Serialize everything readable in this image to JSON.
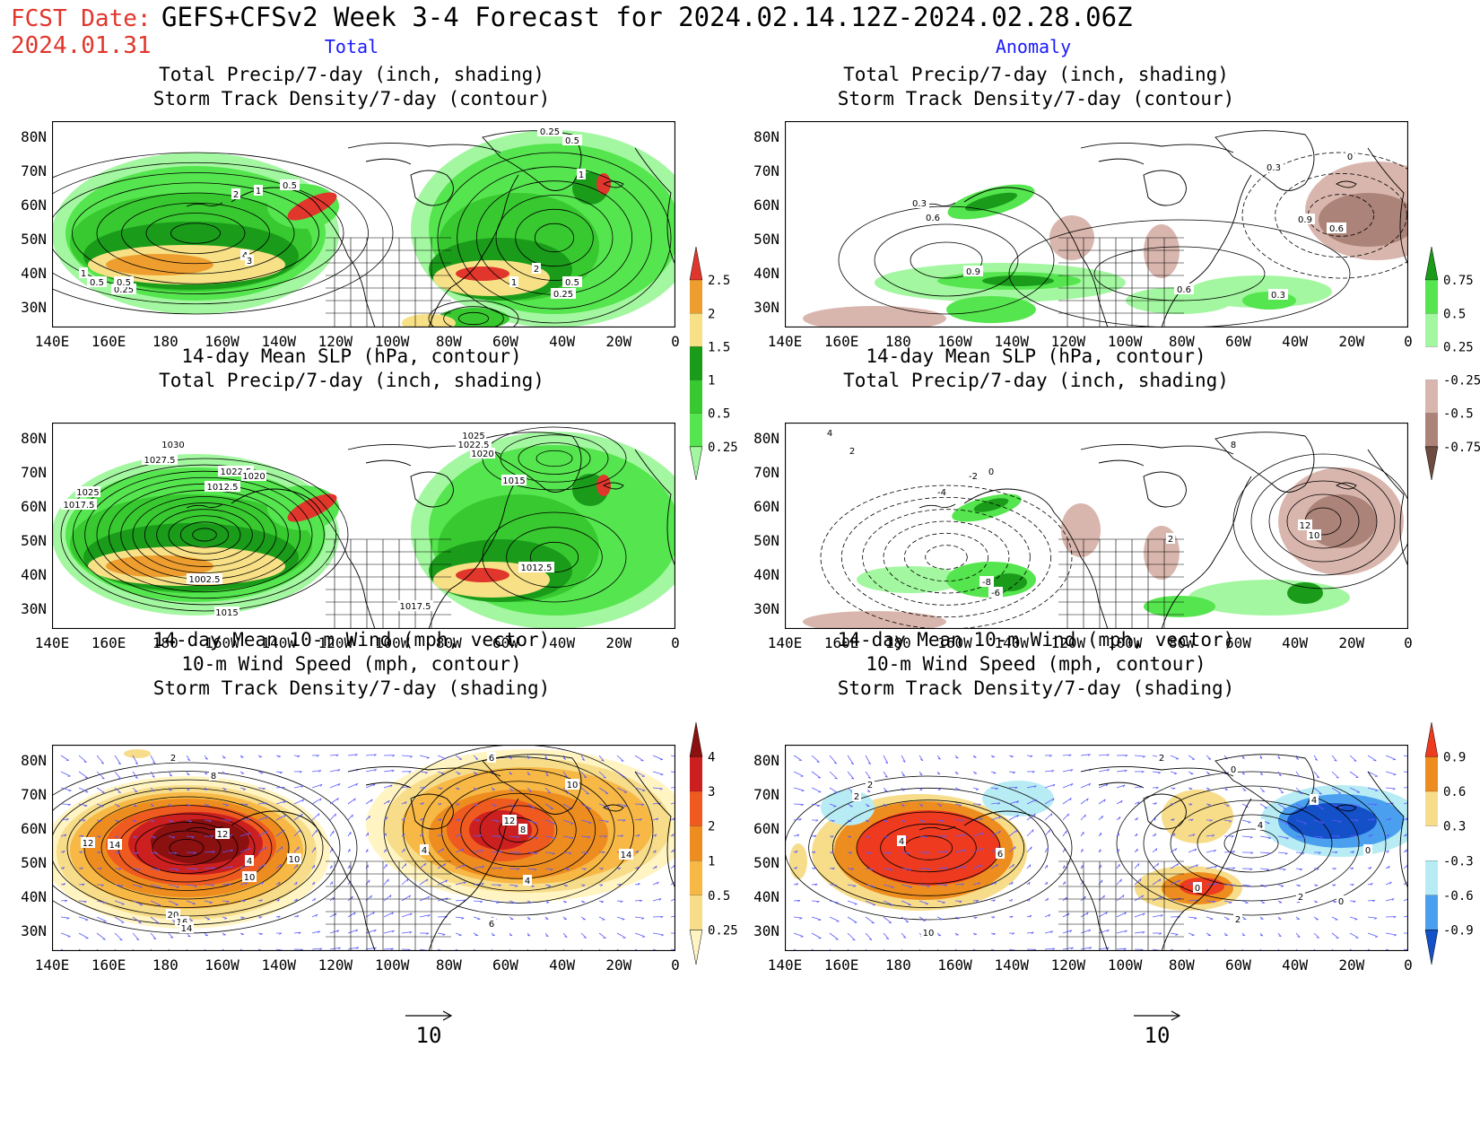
{
  "header": {
    "fcst_label": "FCST Date:",
    "fcst_date": "2024.01.31",
    "title": "GEFS+CFSv2 Week 3-4 Forecast for 2024.02.14.12Z-2024.02.28.06Z",
    "col_left": "Total",
    "col_right": "Anomaly"
  },
  "axes": {
    "lat_labels": [
      "80N",
      "70N",
      "60N",
      "50N",
      "40N",
      "30N"
    ],
    "lon_labels": [
      "140E",
      "160E",
      "180",
      "160W",
      "140W",
      "120W",
      "100W",
      "80W",
      "60W",
      "40W",
      "20W",
      "0"
    ]
  },
  "panels": {
    "p1": {
      "title1": "Total Precip/7-day (inch, shading)",
      "title2": "Storm Track Density/7-day (contour)",
      "contour_labels": [
        "0.25",
        "0.5",
        "1",
        "2",
        "1",
        "0.5",
        "4",
        "3",
        "1",
        "0.5",
        "0.25",
        "2",
        "1",
        "0.5",
        "0.25",
        "1",
        "0.5"
      ]
    },
    "p2": {
      "title1": "Total Precip/7-day (inch, shading)",
      "title2": "Storm Track Density/7-day (contour)",
      "contour_labels": [
        "0.3",
        "0.6",
        "0.9",
        "0.6",
        "0.3",
        "0.3",
        "0.9",
        "0.6",
        "0"
      ]
    },
    "p3": {
      "title1": "14-day Mean SLP (hPa, contour)",
      "title2": "Total Precip/7-day (inch, shading)",
      "contour_labels": [
        "1030",
        "1027.5",
        "1025",
        "1017.5",
        "1022.5",
        "1020",
        "1012.5",
        "1002.5",
        "1015",
        "1025",
        "1022.5",
        "1020",
        "1015",
        "1012.5",
        "1017.5"
      ]
    },
    "p4": {
      "title1": "14-day Mean SLP (hPa, contour)",
      "title2": "Total Precip/7-day (inch, shading)",
      "contour_labels": [
        "4",
        "2",
        "0",
        "-4",
        "-2",
        "-8",
        "-6",
        "8",
        "12",
        "10",
        "2"
      ]
    },
    "p5": {
      "title1": "14-day Mean 10-m Wind (mph, vector)",
      "title2": "10-m Wind Speed (mph, contour)",
      "title3": "Storm Track Density/7-day (shading)",
      "contour_labels": [
        "2",
        "8",
        "12",
        "14",
        "12",
        "10",
        "10",
        "20",
        "16",
        "14",
        "4",
        "6",
        "10",
        "12",
        "8",
        "4",
        "4",
        "6",
        "14"
      ]
    },
    "p6": {
      "title1": "14-day Mean 10-m Wind (mph, vector)",
      "title2": "10-m Wind Speed (mph, contour)",
      "title3": "Storm Track Density/7-day (shading)",
      "contour_labels": [
        "2",
        "4",
        "2",
        "4",
        "6",
        "10",
        "2",
        "0",
        "4",
        "0",
        "2",
        "0",
        "0",
        "2"
      ]
    }
  },
  "colorbars": {
    "precip_total": {
      "labels": [
        "2.5",
        "2",
        "1.5",
        "1",
        "0.5",
        "0.25"
      ],
      "colors": [
        "#e0362c",
        "#ee9d2f",
        "#f7e085",
        "#1a9b1a",
        "#37c92f",
        "#55e54e",
        "#a3f7a0"
      ]
    },
    "precip_anom": {
      "labels": [
        "0.75",
        "0.5",
        "0.25",
        "-0.25",
        "-0.5",
        "-0.75"
      ],
      "colors": [
        "#1a9b1a",
        "#55e54e",
        "#a3f7a0",
        "#ffffff",
        "#d9b6ad",
        "#ab8378",
        "#6e4b40"
      ]
    },
    "storm_total": {
      "labels": [
        "4",
        "3",
        "2",
        "1",
        "0.5",
        "0.25"
      ],
      "colors": [
        "#8b1010",
        "#cc1f1f",
        "#ee5a1f",
        "#ee8d1f",
        "#f7b846",
        "#f7dc8a",
        "#fff4c2"
      ]
    },
    "storm_anom": {
      "labels": [
        "0.9",
        "0.6",
        "0.3",
        "-0.3",
        "-0.6",
        "-0.9"
      ],
      "colors": [
        "#ee3a1f",
        "#ee8d1f",
        "#f7dc8a",
        "#ffffff",
        "#b8ecf5",
        "#4aa0ee",
        "#1450c8"
      ]
    }
  },
  "reference_vector": {
    "left_value": "10",
    "right_value": "10"
  }
}
